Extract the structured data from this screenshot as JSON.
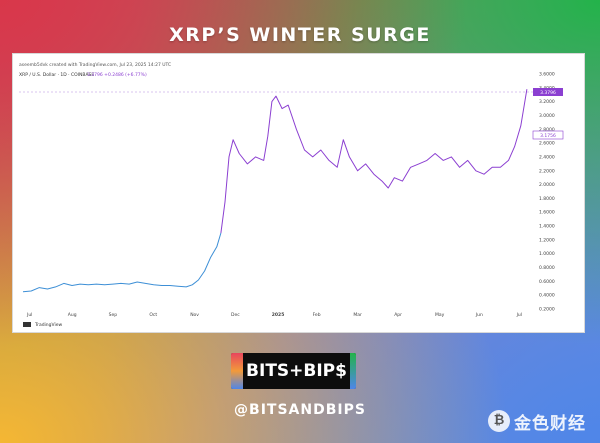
{
  "header": {
    "title": "XRP’S WINTER SURGE"
  },
  "chart_meta": {
    "author_line": "aseemb5dvk created with TradingView.com, Jul 23, 2025 14:27 UTC",
    "symbol_line": "XRP / U.S. Dollar · 1D · COINBASE",
    "quote": "3.3796  +0.2486 (+6.77%)",
    "last_price_label": "3.3796",
    "high_price_label": "3.1756",
    "footer": "TradingView"
  },
  "brand": {
    "logo_text": "BITS+BIP$"
  },
  "footer": {
    "handle": "@BITSANDBIPS",
    "watermark": "金色财经"
  },
  "colors": {
    "line_early": "#3d8fd6",
    "line_late": "#8b3fd1",
    "guide": "#b48be0"
  },
  "chart_data": {
    "type": "line",
    "title": "XRP’S WINTER SURGE",
    "xlabel": "",
    "ylabel": "",
    "x_ticks": [
      "Jul",
      "Aug",
      "Sep",
      "Oct",
      "Nov",
      "Dec",
      "2025",
      "Feb",
      "Mar",
      "Apr",
      "May",
      "Jun",
      "Jul"
    ],
    "y_ticks": [
      "0.2000",
      "0.4000",
      "0.6000",
      "0.8000",
      "1.0000",
      "1.2000",
      "1.4000",
      "1.6000",
      "1.8000",
      "2.0000",
      "2.2000",
      "2.4000",
      "2.6000",
      "2.8000",
      "3.0000",
      "3.2000",
      "3.4000",
      "3.6000"
    ],
    "ylim": [
      0.2,
      3.6
    ],
    "xlim": [
      0,
      12.5
    ],
    "grid": false,
    "legend": "none",
    "series": [
      {
        "points": [
          [
            0.0,
            0.45
          ],
          [
            0.2,
            0.46
          ],
          [
            0.4,
            0.51
          ],
          [
            0.6,
            0.49
          ],
          [
            0.8,
            0.52
          ],
          [
            1.0,
            0.57
          ],
          [
            1.2,
            0.54
          ],
          [
            1.4,
            0.56
          ],
          [
            1.6,
            0.55
          ],
          [
            1.8,
            0.56
          ],
          [
            2.0,
            0.55
          ],
          [
            2.2,
            0.56
          ],
          [
            2.4,
            0.57
          ],
          [
            2.6,
            0.56
          ],
          [
            2.8,
            0.59
          ],
          [
            3.0,
            0.57
          ],
          [
            3.2,
            0.55
          ],
          [
            3.4,
            0.54
          ],
          [
            3.6,
            0.54
          ],
          [
            3.8,
            0.53
          ],
          [
            4.0,
            0.52
          ],
          [
            4.15,
            0.55
          ],
          [
            4.3,
            0.62
          ],
          [
            4.45,
            0.75
          ],
          [
            4.6,
            0.95
          ],
          [
            4.75,
            1.1
          ],
          [
            4.85,
            1.3
          ],
          [
            4.95,
            1.75
          ],
          [
            5.05,
            2.4
          ],
          [
            5.15,
            2.65
          ],
          [
            5.3,
            2.45
          ],
          [
            5.5,
            2.3
          ],
          [
            5.7,
            2.4
          ],
          [
            5.9,
            2.35
          ],
          [
            6.0,
            2.7
          ],
          [
            6.1,
            3.2
          ],
          [
            6.2,
            3.28
          ],
          [
            6.35,
            3.1
          ],
          [
            6.5,
            3.15
          ],
          [
            6.7,
            2.8
          ],
          [
            6.9,
            2.5
          ],
          [
            7.1,
            2.4
          ],
          [
            7.3,
            2.5
          ],
          [
            7.5,
            2.35
          ],
          [
            7.7,
            2.25
          ],
          [
            7.85,
            2.65
          ],
          [
            8.0,
            2.4
          ],
          [
            8.2,
            2.2
          ],
          [
            8.4,
            2.3
          ],
          [
            8.6,
            2.15
          ],
          [
            8.8,
            2.05
          ],
          [
            8.95,
            1.95
          ],
          [
            9.1,
            2.1
          ],
          [
            9.3,
            2.05
          ],
          [
            9.5,
            2.25
          ],
          [
            9.7,
            2.3
          ],
          [
            9.9,
            2.35
          ],
          [
            10.1,
            2.45
          ],
          [
            10.3,
            2.35
          ],
          [
            10.5,
            2.4
          ],
          [
            10.7,
            2.25
          ],
          [
            10.9,
            2.35
          ],
          [
            11.1,
            2.2
          ],
          [
            11.3,
            2.15
          ],
          [
            11.5,
            2.25
          ],
          [
            11.7,
            2.25
          ],
          [
            11.9,
            2.35
          ],
          [
            12.05,
            2.55
          ],
          [
            12.2,
            2.85
          ],
          [
            12.35,
            3.38
          ]
        ]
      }
    ]
  }
}
